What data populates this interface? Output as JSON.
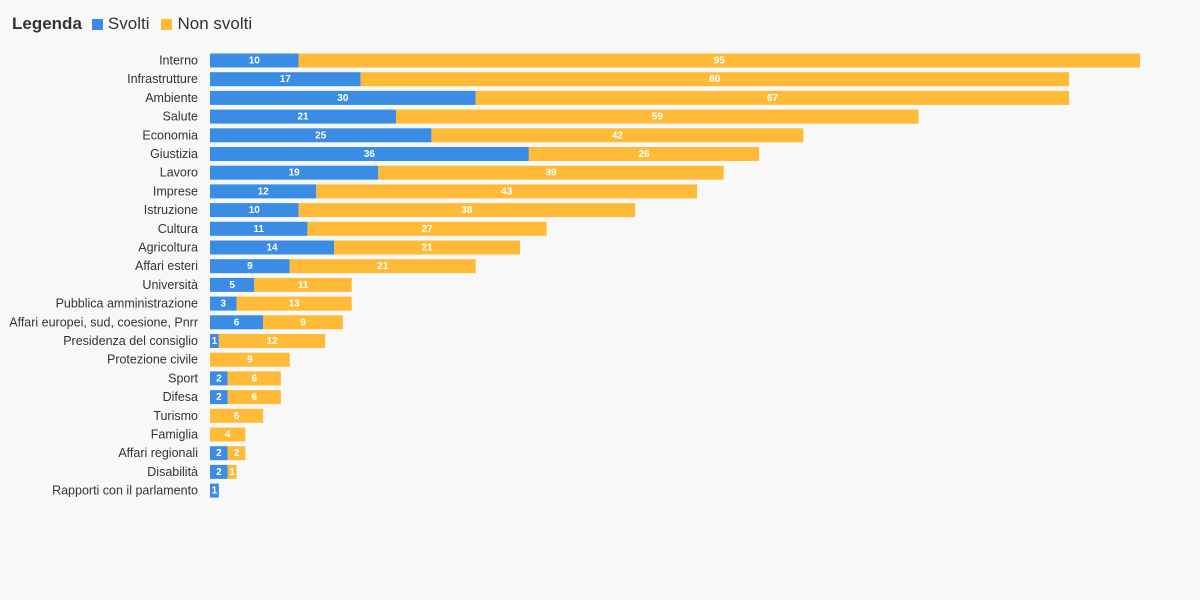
{
  "legend": {
    "title": "Legenda",
    "items": [
      {
        "label": "Svolti",
        "color": "#3b8ce4"
      },
      {
        "label": "Non svolti",
        "color": "#ffba38"
      }
    ]
  },
  "chart_data": {
    "type": "bar",
    "orientation": "horizontal",
    "stacked": true,
    "title": "",
    "xlabel": "",
    "ylabel": "",
    "xlim": [
      0,
      105
    ],
    "grid": false,
    "legend_position": "top-left",
    "data_labels": true,
    "categories": [
      "Interno",
      "Infrastrutture",
      "Ambiente",
      "Salute",
      "Economia",
      "Giustizia",
      "Lavoro",
      "Imprese",
      "Istruzione",
      "Cultura",
      "Agricoltura",
      "Affari esteri",
      "Università",
      "Pubblica amministrazione",
      "Affari europei, sud, coesione, Pnrr",
      "Presidenza del consiglio",
      "Protezione civile",
      "Sport",
      "Difesa",
      "Turismo",
      "Famiglia",
      "Affari regionali",
      "Disabilità",
      "Rapporti con il parlamento"
    ],
    "series": [
      {
        "name": "Svolti",
        "color": "#3b8ce4",
        "values": [
          10,
          17,
          30,
          21,
          25,
          36,
          19,
          12,
          10,
          11,
          14,
          9,
          5,
          3,
          6,
          1,
          0,
          2,
          2,
          0,
          0,
          2,
          2,
          1
        ]
      },
      {
        "name": "Non svolti",
        "color": "#ffba38",
        "values": [
          95,
          80,
          67,
          59,
          42,
          26,
          39,
          43,
          38,
          27,
          21,
          21,
          11,
          13,
          9,
          12,
          9,
          6,
          6,
          6,
          4,
          2,
          1,
          0
        ]
      }
    ]
  }
}
